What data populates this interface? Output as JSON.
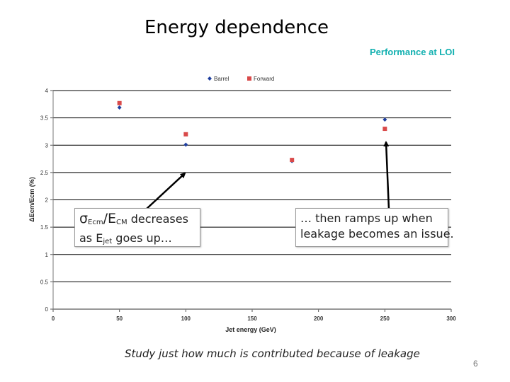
{
  "slide": {
    "title": "Energy dependence",
    "tag": "Performance at LOI",
    "footnote": "Study just how much is contributed because of leakage",
    "page_number": "6"
  },
  "callouts": {
    "left": {
      "sigma": "σ",
      "sub1": "Ecm",
      "slash": "/E",
      "sub2": "CM",
      "rest1": " decreases",
      "line2_pre": "as E",
      "sub3": "jet",
      "line2_post": " goes up…"
    },
    "right": {
      "line1": "… then ramps up when",
      "line2": "leakage becomes an issue."
    }
  },
  "chart_data": {
    "type": "scatter",
    "xlabel": "Jet energy (GeV)",
    "ylabel": "ΔEcm/Ecm (%)",
    "xlim": [
      0,
      300
    ],
    "ylim": [
      0,
      4
    ],
    "x_ticks": [
      "0",
      "50",
      "100",
      "150",
      "200",
      "250",
      "300"
    ],
    "y_ticks": [
      "0",
      "0.5",
      "1",
      "1.5",
      "2",
      "2.5",
      "3",
      "3.5",
      "4"
    ],
    "grid": "horizontal",
    "legend_position": "top",
    "series": [
      {
        "name": "Barrel",
        "color": "#1f3f9f",
        "marker": "diamond",
        "points": [
          [
            50,
            3.69
          ],
          [
            100,
            3.01
          ],
          [
            180,
            2.71
          ],
          [
            250,
            3.47
          ]
        ]
      },
      {
        "name": "Forward",
        "color": "#d94a4a",
        "marker": "square",
        "points": [
          [
            50,
            3.77
          ],
          [
            100,
            3.2
          ],
          [
            180,
            2.73
          ],
          [
            250,
            3.3
          ]
        ]
      }
    ]
  }
}
